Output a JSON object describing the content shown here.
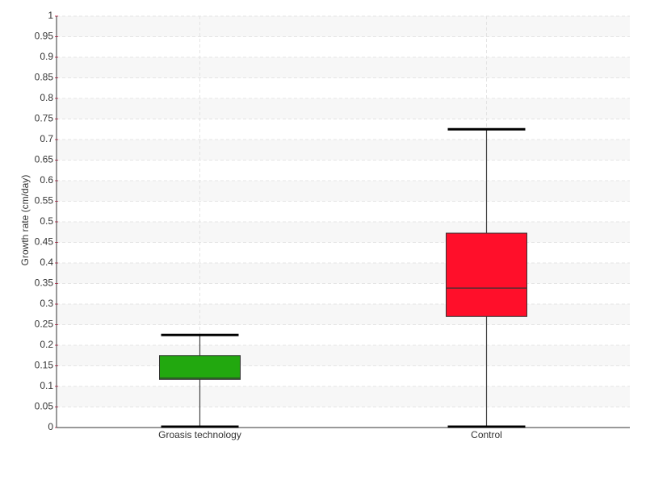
{
  "chart_data": {
    "type": "box",
    "y_label": "Growth rate (cm/day)",
    "categories": [
      "Groasis technology",
      "Control"
    ],
    "boxes": [
      {
        "color": "#22a80f",
        "min": 0,
        "q1": 0.117,
        "median": 0.12,
        "q3": 0.175,
        "max": 0.225
      },
      {
        "color": "#ff0f2a",
        "min": 0,
        "q1": 0.27,
        "median": 0.339,
        "q3": 0.4725,
        "max": 0.725
      }
    ],
    "ylim": [
      0,
      1
    ],
    "yticks": [
      0,
      0.05,
      0.1,
      0.15,
      0.2,
      0.25,
      0.3,
      0.35,
      0.4,
      0.45,
      0.5,
      0.55,
      0.6,
      0.65,
      0.7,
      0.75,
      0.8,
      0.85,
      0.9,
      0.95,
      1
    ],
    "grid": true
  }
}
